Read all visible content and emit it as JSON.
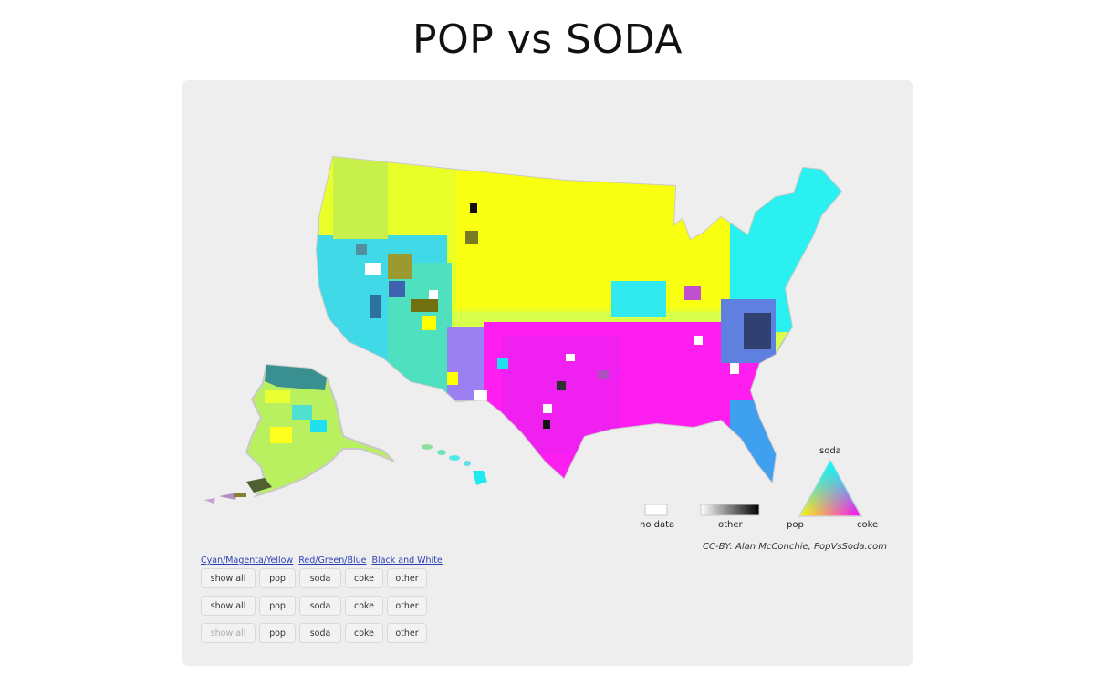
{
  "title": "POP vs SODA",
  "legend": {
    "no_data": "no data",
    "other": "other",
    "pop": "pop",
    "coke": "coke",
    "soda": "soda"
  },
  "credit": "CC-BY: Alan McConchie, PopVsSoda.com",
  "color_schemes": [
    "Cyan/Magenta/Yellow",
    "Red/Green/Blue",
    "Black and White"
  ],
  "button_rows": [
    {
      "labels": [
        "show all",
        "pop",
        "soda",
        "coke",
        "other"
      ],
      "show_all_disabled": false
    },
    {
      "labels": [
        "show all",
        "pop",
        "soda",
        "coke",
        "other"
      ],
      "show_all_disabled": false
    },
    {
      "labels": [
        "show all",
        "pop",
        "soda",
        "coke",
        "other"
      ],
      "show_all_disabled": true
    }
  ],
  "colors": {
    "pop": "#ffff00",
    "soda": "#00ffff",
    "coke": "#ff00ff",
    "no_data": "#ffffff",
    "other": "#000000",
    "panel_bg": "#eeeeee"
  }
}
